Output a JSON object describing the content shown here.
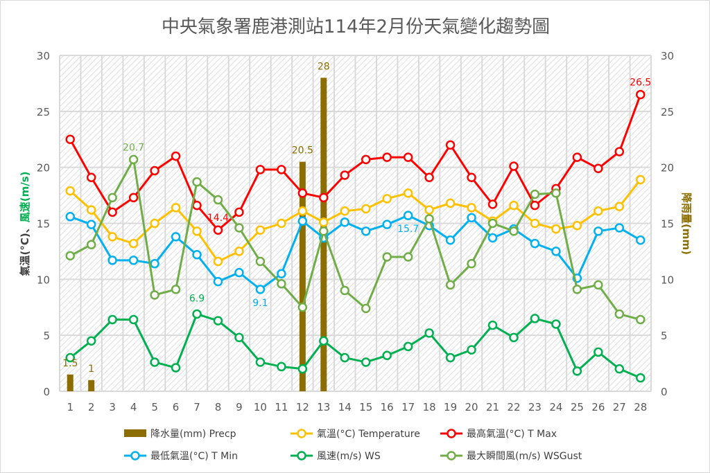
{
  "chart_data": {
    "type": "bar+line",
    "title": "中央氣象署鹿港測站114年2月份天氣變化趨勢圖",
    "ylabel_left_parts": [
      "氣溫(°C)",
      "、",
      "風速(m/s)"
    ],
    "ylabel_right": "降雨量(mm)",
    "ylim_left": [
      0,
      30
    ],
    "ylim_right": [
      0,
      30
    ],
    "yticks": [
      0,
      5,
      10,
      15,
      20,
      25,
      30
    ],
    "categories": [
      "1",
      "2",
      "3",
      "4",
      "5",
      "6",
      "7",
      "8",
      "9",
      "10",
      "11",
      "12",
      "13",
      "14",
      "15",
      "16",
      "17",
      "18",
      "19",
      "20",
      "21",
      "22",
      "23",
      "24",
      "25",
      "26",
      "27",
      "28"
    ],
    "grid": true,
    "legend_position": "bottom",
    "series": [
      {
        "name": "降水量(mm) Precp",
        "kind": "bar",
        "axis": "right",
        "color": "#8B6D00",
        "values": [
          1.5,
          1,
          0,
          0,
          0,
          0,
          0,
          0,
          0,
          0,
          0,
          20.5,
          28,
          0,
          0,
          0,
          0,
          0,
          0,
          0,
          0,
          0,
          0,
          0,
          0,
          0,
          0,
          0
        ],
        "labels": {
          "0": "1.5",
          "1": "1",
          "11": "20.5",
          "12": "28"
        }
      },
      {
        "name": "氣溫(°C) Temperature",
        "kind": "line",
        "color": "#FFC000",
        "values": [
          17.9,
          16.2,
          13.8,
          13.2,
          15.0,
          16.4,
          14.3,
          11.6,
          12.5,
          14.4,
          15.0,
          16.1,
          15.1,
          16.1,
          16.3,
          17.2,
          17.7,
          16.2,
          16.8,
          16.4,
          15.2,
          16.6,
          15.0,
          14.5,
          14.8,
          16.1,
          16.5,
          18.9
        ],
        "labels": {}
      },
      {
        "name": "最高氣溫(°C) T Max",
        "kind": "line",
        "color": "#FF0000",
        "values": [
          22.5,
          19.1,
          16.0,
          17.3,
          19.7,
          21.0,
          16.6,
          14.4,
          16.0,
          19.8,
          19.8,
          17.7,
          17.3,
          19.3,
          20.7,
          20.9,
          20.9,
          19.1,
          22.0,
          19.1,
          16.7,
          20.1,
          16.6,
          18.1,
          20.9,
          19.9,
          21.4,
          26.5
        ],
        "labels": {
          "7": "14.4",
          "27": "26.5"
        }
      },
      {
        "name": "最低氣溫(°C) T Min",
        "kind": "line",
        "color": "#00B0F0",
        "values": [
          15.6,
          14.9,
          11.7,
          11.7,
          11.4,
          13.8,
          12.2,
          9.8,
          10.6,
          9.1,
          10.5,
          15.2,
          13.7,
          15.1,
          14.3,
          14.9,
          15.7,
          14.8,
          13.5,
          15.5,
          13.7,
          14.5,
          13.2,
          12.5,
          10.1,
          14.3,
          14.6,
          13.5
        ],
        "labels": {
          "9": "9.1",
          "16": "15.7"
        }
      },
      {
        "name": "風速(m/s) WS",
        "kind": "line",
        "color": "#00B050",
        "values": [
          3.0,
          4.5,
          6.4,
          6.4,
          2.6,
          2.1,
          6.9,
          6.3,
          4.8,
          2.6,
          2.2,
          2.0,
          4.5,
          3.0,
          2.6,
          3.2,
          4.0,
          5.2,
          3.0,
          3.7,
          5.9,
          4.8,
          6.5,
          6.0,
          1.8,
          3.5,
          2.0,
          1.2
        ],
        "labels": {
          "6": "6.9"
        }
      },
      {
        "name": "最大瞬間風(m/s) WSGust",
        "kind": "line",
        "color": "#70AD47",
        "values": [
          12.1,
          13.1,
          17.3,
          20.7,
          8.6,
          9.1,
          18.7,
          17.1,
          14.6,
          11.6,
          9.6,
          7.5,
          14.3,
          9.0,
          7.4,
          12.0,
          12.0,
          15.4,
          9.5,
          11.4,
          15.0,
          14.3,
          17.6,
          17.7,
          9.1,
          9.5,
          6.9,
          6.4
        ],
        "labels": {
          "3": "20.7"
        }
      }
    ]
  }
}
